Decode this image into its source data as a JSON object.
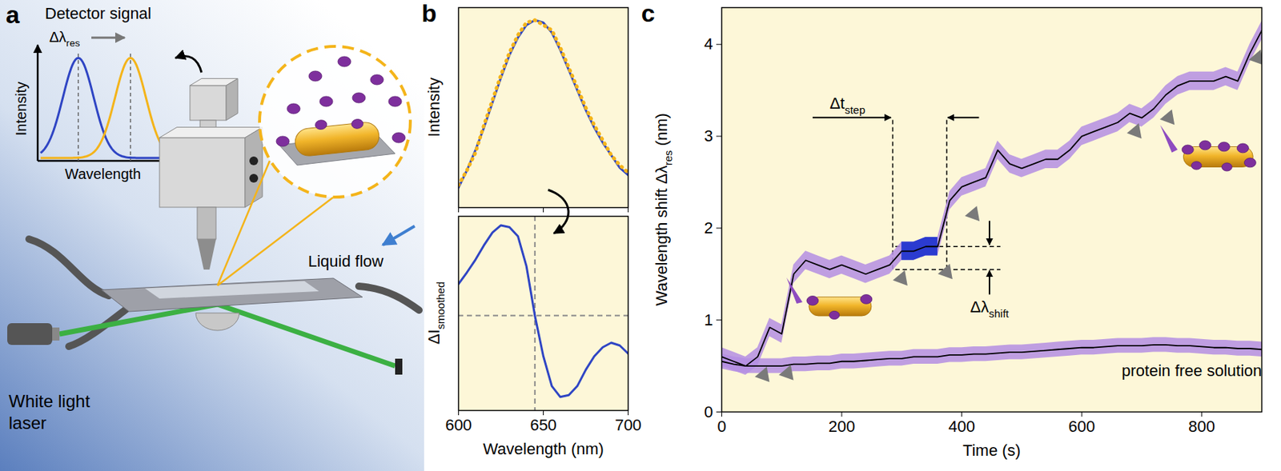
{
  "panel_a": {
    "label": "a",
    "inset": {
      "title": "Detector signal",
      "shift_label": [
        "Δλ",
        {
          "sub": "res"
        }
      ],
      "y_label": "Intensity",
      "x_label": "Wavelength"
    },
    "flow_label": "Liquid flow",
    "source_label": "White light laser"
  },
  "chart_data": [
    {
      "panel": "b",
      "type": "line",
      "ylabel": "Intensity",
      "x": [
        600,
        605,
        610,
        615,
        620,
        625,
        630,
        635,
        640,
        645,
        650,
        655,
        660,
        665,
        670,
        675,
        680,
        685,
        690,
        695,
        700
      ],
      "series": [
        {
          "color": "#2f45c4",
          "line_style": "solid",
          "values": [
            0.33,
            0.4,
            0.48,
            0.57,
            0.67,
            0.77,
            0.86,
            0.93,
            0.98,
            1.0,
            0.99,
            0.95,
            0.88,
            0.8,
            0.72,
            0.64,
            0.57,
            0.51,
            0.46,
            0.41,
            0.38
          ]
        },
        {
          "color": "#f4b41a",
          "line_style": "dotted",
          "values": [
            0.34,
            0.4,
            0.47,
            0.58,
            0.68,
            0.78,
            0.87,
            0.94,
            0.99,
            1.0,
            0.98,
            0.96,
            0.89,
            0.81,
            0.73,
            0.65,
            0.58,
            0.52,
            0.46,
            0.42,
            0.39
          ]
        }
      ],
      "xlim": [
        600,
        700
      ],
      "xticks": [
        600,
        650,
        700
      ],
      "ylim": [
        0.25,
        1.05
      ],
      "yticks": [],
      "tick_labels": false
    },
    {
      "type": "line",
      "ylabel": [
        "ΔI",
        {
          "sub": "smoothed"
        }
      ],
      "xlabel": "Wavelength (nm)",
      "x": [
        600,
        605,
        610,
        615,
        620,
        625,
        630,
        635,
        640,
        645,
        650,
        655,
        660,
        665,
        670,
        675,
        680,
        685,
        690,
        695,
        700
      ],
      "series": [
        {
          "color": "#2f45c4",
          "line_style": "solid",
          "values": [
            0.35,
            0.48,
            0.62,
            0.78,
            0.92,
            1.0,
            0.98,
            0.88,
            0.55,
            0.0,
            -0.45,
            -0.78,
            -0.9,
            -0.88,
            -0.78,
            -0.6,
            -0.45,
            -0.35,
            -0.3,
            -0.33,
            -0.42
          ]
        }
      ],
      "xlim": [
        600,
        700
      ],
      "xticks": [
        600,
        650,
        700
      ],
      "ylim": [
        -1.05,
        1.1
      ],
      "yticks": [],
      "tick_labels": "x",
      "reference_x": 645,
      "reference_y": 0
    },
    {
      "panel": "c",
      "type": "line",
      "xlabel": "Time (s)",
      "ylabel": [
        "Wavelength shift Δλ",
        {
          "sub": "res"
        },
        " (nm)"
      ],
      "x": [
        0,
        20,
        40,
        60,
        80,
        100,
        120,
        140,
        160,
        180,
        200,
        220,
        240,
        260,
        280,
        300,
        320,
        340,
        360,
        380,
        400,
        420,
        440,
        460,
        480,
        500,
        520,
        540,
        560,
        580,
        600,
        620,
        640,
        660,
        680,
        700,
        720,
        740,
        760,
        780,
        800,
        820,
        840,
        860,
        880,
        900
      ],
      "series": [
        {
          "color": "#000000",
          "error": 0.1,
          "highlight": {
            "x": [
              285,
              375
            ],
            "color": "#2b3bd0"
          },
          "values": [
            0.6,
            0.55,
            0.5,
            0.6,
            0.92,
            0.85,
            1.5,
            1.65,
            1.6,
            1.55,
            1.6,
            1.55,
            1.5,
            1.55,
            1.6,
            1.75,
            1.75,
            1.8,
            1.8,
            2.3,
            2.45,
            2.5,
            2.55,
            2.85,
            2.7,
            2.65,
            2.7,
            2.75,
            2.75,
            2.85,
            3.0,
            3.05,
            3.1,
            3.15,
            3.25,
            3.2,
            3.3,
            3.45,
            3.55,
            3.6,
            3.6,
            3.6,
            3.65,
            3.6,
            3.9,
            4.15
          ]
        },
        {
          "name": "protein free solution",
          "color": "#000000",
          "error": 0.08,
          "values": [
            0.55,
            0.52,
            0.5,
            0.5,
            0.5,
            0.5,
            0.52,
            0.52,
            0.53,
            0.53,
            0.55,
            0.55,
            0.56,
            0.57,
            0.58,
            0.58,
            0.6,
            0.6,
            0.6,
            0.62,
            0.62,
            0.63,
            0.63,
            0.64,
            0.65,
            0.65,
            0.66,
            0.67,
            0.68,
            0.69,
            0.7,
            0.7,
            0.71,
            0.72,
            0.72,
            0.72,
            0.73,
            0.73,
            0.72,
            0.72,
            0.71,
            0.7,
            0.7,
            0.69,
            0.69,
            0.68
          ]
        }
      ],
      "steps": {
        "x": [
          70,
          110,
          300,
          375,
          420,
          690,
          745,
          893
        ],
        "y": [
          0.4,
          0.42,
          1.45,
          1.52,
          2.15,
          3.05,
          3.2,
          3.85
        ]
      },
      "step_time": {
        "label": [
          "Δt",
          {
            "sub": "step"
          }
        ],
        "x": [
          285,
          375
        ],
        "y": 3.2
      },
      "step_shift": {
        "label": [
          "Δλ",
          {
            "sub": "shift"
          }
        ],
        "x": [
          290,
          465
        ],
        "y": [
          1.55,
          1.8
        ]
      },
      "xlim": [
        0,
        900
      ],
      "xticks": [
        0,
        200,
        400,
        600,
        800
      ],
      "ylim": [
        0,
        4.4
      ],
      "yticks": [
        0,
        1,
        2,
        3,
        4
      ]
    }
  ]
}
